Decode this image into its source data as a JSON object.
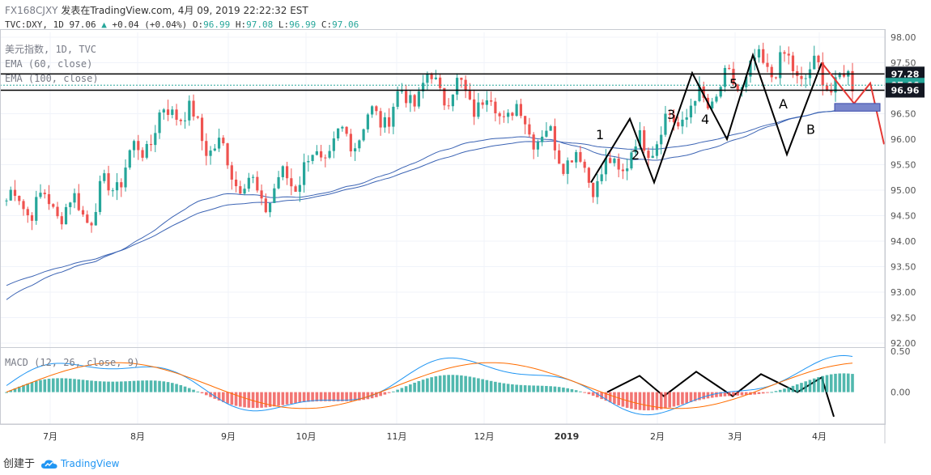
{
  "header": {
    "symbol": "FX168CJXY",
    "published": "发表在TradingView.com, 4月 09, 2019 22:22:32 EST",
    "ticker": "TVC:DXY, 1D",
    "last": "97.06",
    "change": "+0.04 (+0.04%)",
    "o_label": "O:",
    "o": "96.99",
    "h_label": "H:",
    "h": "97.08",
    "l_label": "L:",
    "l": "96.99",
    "c_label": "C:",
    "c": "97.06"
  },
  "legend": {
    "title": "美元指数, 1D, TVC",
    "ema60": "EMA (60, close)",
    "ema100": "EMA (100, close)",
    "macd": "MACD (12, 26, close, 9)"
  },
  "footer": {
    "created": "创建于",
    "brand": "TradingView"
  },
  "colors": {
    "up": "#26a69a",
    "down": "#ef5350",
    "ema": "#3c64b4",
    "macd": "#2196f3",
    "signal": "#ff6d00",
    "label_dark": "#131722",
    "label_green": "#26a69a"
  },
  "chart_data": {
    "type": "candlestick",
    "price_axis": {
      "min": 92.0,
      "max": 98.0,
      "ticks": [
        "98.00",
        "97.50",
        "97.00",
        "96.50",
        "96.00",
        "95.50",
        "95.00",
        "94.50",
        "94.00",
        "93.50",
        "93.00",
        "92.50",
        "92.00"
      ]
    },
    "macd_axis": {
      "min": -0.35,
      "max": 0.5,
      "ticks": [
        "0.50",
        "0.00"
      ]
    },
    "time_ticks": [
      "7月",
      "8月",
      "9月",
      "10月",
      "11月",
      "12月",
      "2019",
      "2月",
      "3月",
      "4月"
    ],
    "price_labels": [
      {
        "text": "97.28",
        "value": 97.28,
        "style": "dark"
      },
      {
        "text": "97.06",
        "value": 97.06,
        "style": "green"
      },
      {
        "text": "96.96",
        "value": 96.96,
        "style": "dark"
      }
    ],
    "horizontal_lines": [
      97.28,
      96.96,
      97.06
    ],
    "annotations": [
      "1",
      "2",
      "3",
      "4",
      "5",
      "A",
      "B"
    ],
    "price_path_months": [
      {
        "month": "6月末",
        "close": 94.8
      },
      {
        "month": "7月",
        "close": 94.6
      },
      {
        "month": "8月",
        "close": 96.7
      },
      {
        "month": "9月",
        "close": 94.8
      },
      {
        "month": "10月",
        "close": 96.0
      },
      {
        "month": "11月",
        "close": 97.1
      },
      {
        "month": "12月",
        "close": 96.5
      },
      {
        "month": "2019",
        "close": 95.2
      },
      {
        "month": "2月",
        "close": 96.5
      },
      {
        "month": "3月",
        "close": 97.5
      },
      {
        "month": "4月",
        "close": 97.06
      }
    ]
  }
}
